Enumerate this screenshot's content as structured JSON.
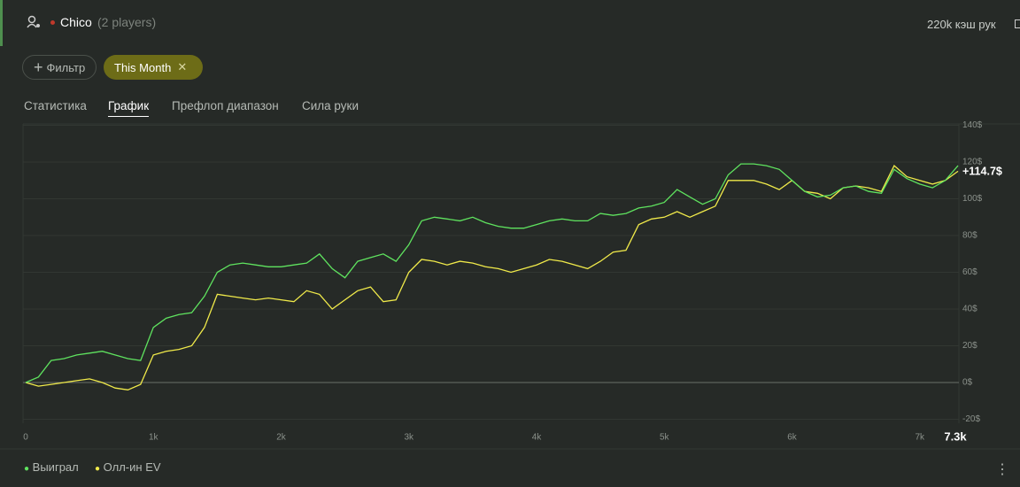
{
  "header": {
    "player": "Chico",
    "players": "(2 players)",
    "hands": "220k кэш рук"
  },
  "filters": {
    "add": "Фильтр",
    "active": "This Month"
  },
  "tabs": [
    "Статистика",
    "График",
    "Префлоп диапазон",
    "Сила руки"
  ],
  "chart_data": {
    "type": "line",
    "x": [
      0,
      100,
      200,
      300,
      400,
      500,
      600,
      700,
      800,
      900,
      1000,
      1100,
      1200,
      1300,
      1400,
      1500,
      1600,
      1700,
      1800,
      1900,
      2000,
      2100,
      2200,
      2300,
      2400,
      2500,
      2600,
      2700,
      2800,
      2900,
      3000,
      3100,
      3200,
      3300,
      3400,
      3500,
      3600,
      3700,
      3800,
      3900,
      4000,
      4100,
      4200,
      4300,
      4400,
      4500,
      4600,
      4700,
      4800,
      4900,
      5000,
      5100,
      5200,
      5300,
      5400,
      5500,
      5600,
      5700,
      5800,
      5900,
      6000,
      6100,
      6200,
      6300,
      6400,
      6500,
      6600,
      6700,
      6800,
      6900,
      7000,
      7100,
      7200,
      7300
    ],
    "series": [
      {
        "name": "Выиграл",
        "color": "#5fe35f",
        "values": [
          0,
          3,
          12,
          13,
          15,
          16,
          17,
          15,
          13,
          12,
          30,
          35,
          37,
          38,
          47,
          60,
          64,
          65,
          64,
          63,
          63,
          64,
          65,
          70,
          62,
          57,
          66,
          68,
          70,
          66,
          75,
          88,
          90,
          89,
          88,
          90,
          87,
          85,
          84,
          84,
          86,
          88,
          89,
          88,
          88,
          92,
          91,
          92,
          95,
          96,
          98,
          105,
          101,
          97,
          100,
          113,
          119,
          119,
          118,
          116,
          110,
          104,
          101,
          102,
          106,
          107,
          104,
          103,
          116,
          111,
          108,
          106,
          110,
          118
        ]
      },
      {
        "name": "Олл-ин EV",
        "color": "#f0ea4a",
        "values": [
          0,
          -2,
          -1,
          0,
          1,
          2,
          0,
          -3,
          -4,
          -1,
          15,
          17,
          18,
          20,
          30,
          48,
          47,
          46,
          45,
          46,
          45,
          44,
          50,
          48,
          40,
          45,
          50,
          52,
          44,
          45,
          60,
          67,
          66,
          64,
          66,
          65,
          63,
          62,
          60,
          62,
          64,
          67,
          66,
          64,
          62,
          66,
          71,
          72,
          86,
          89,
          90,
          93,
          90,
          93,
          96,
          110,
          110,
          110,
          108,
          105,
          110,
          104,
          103,
          100,
          106,
          107,
          106,
          104,
          118,
          112,
          110,
          108,
          110,
          115
        ]
      }
    ],
    "xlim": [
      0,
      7300
    ],
    "xticks": [
      0,
      {
        "value": 1000,
        "label": "1k"
      },
      {
        "value": 2000,
        "label": "2k"
      },
      {
        "value": 3000,
        "label": "3k"
      },
      {
        "value": 4000,
        "label": "4k"
      },
      {
        "value": 5000,
        "label": "5k"
      },
      {
        "value": 6000,
        "label": "6k"
      },
      {
        "value": 7000,
        "label": "7k"
      }
    ],
    "x_end_label": "7.3k",
    "ylim": [
      -20,
      140
    ],
    "yticks": [
      {
        "value": -20,
        "label": "-20$"
      },
      {
        "value": 0,
        "label": "0$"
      },
      {
        "value": 20,
        "label": "20$"
      },
      {
        "value": 40,
        "label": "40$"
      },
      {
        "value": 60,
        "label": "60$"
      },
      {
        "value": 80,
        "label": "80$"
      },
      {
        "value": 100,
        "label": "100$"
      },
      {
        "value": 120,
        "label": "120$"
      },
      {
        "value": 140,
        "label": "140$"
      }
    ],
    "end_label": "+114.7$",
    "grid": true
  }
}
